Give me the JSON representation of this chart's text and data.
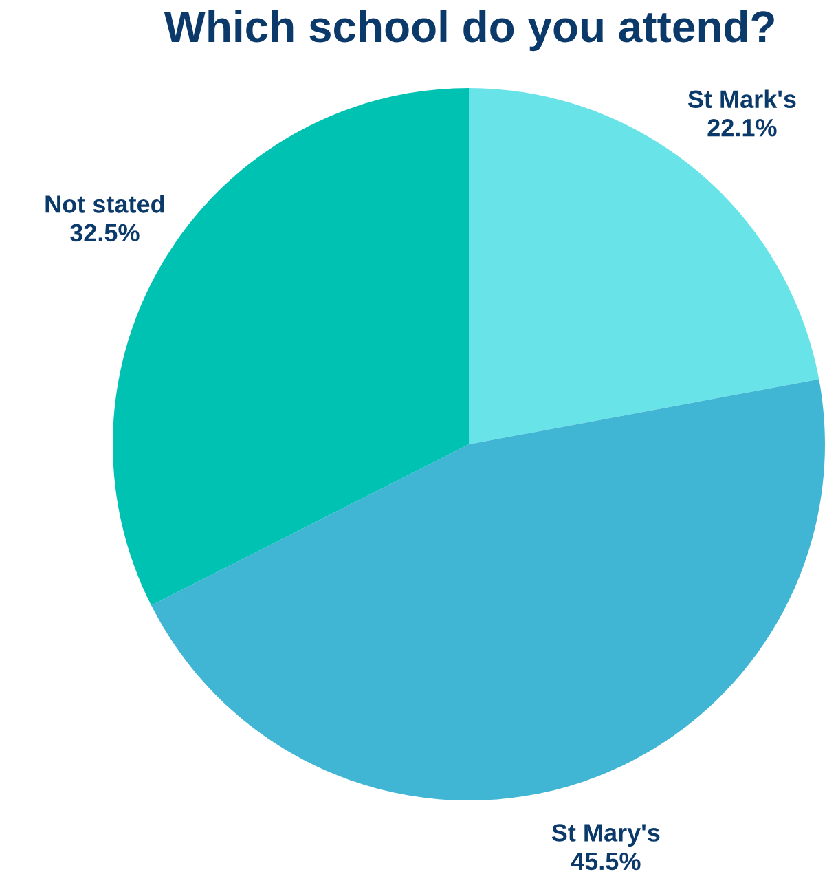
{
  "chart_data": {
    "type": "pie",
    "title": "Which school do you attend?",
    "categories": [
      "St Mark's",
      "St Mary's",
      "Not stated"
    ],
    "values": [
      22.1,
      45.5,
      32.5
    ],
    "value_labels": [
      "22.1%",
      "45.5%",
      "32.5%"
    ],
    "colors": [
      "#68e3e8",
      "#41b6d4",
      "#00c2b2"
    ]
  }
}
